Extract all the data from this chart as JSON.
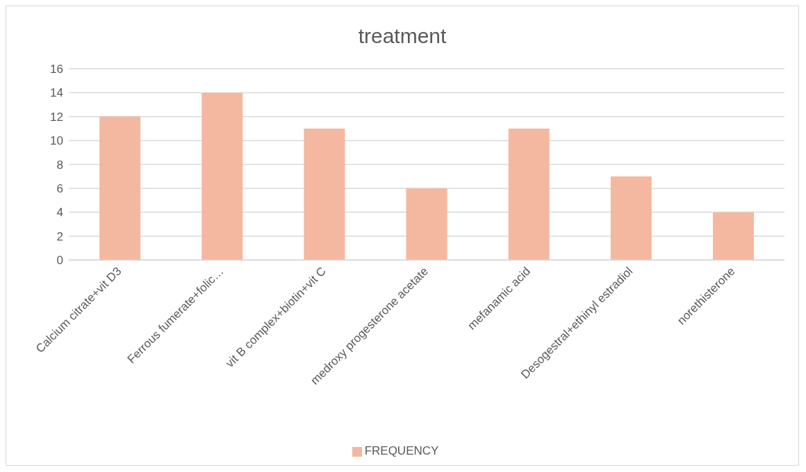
{
  "chart_data": {
    "type": "bar",
    "title": "treatment",
    "categories": [
      "Calcium citrate+vit D3",
      "Ferrous fumerate+folic…",
      "vit B complex+biotin+vit C",
      "medroxy progesterone acetate",
      "mefanamic acid",
      "Desogestral+ethinyl estradiol",
      "norethisterone"
    ],
    "series": [
      {
        "name": "FREQUENCY",
        "color": "#f4b8a0",
        "values": [
          12,
          14,
          11,
          6,
          11,
          7,
          4
        ]
      }
    ],
    "ylim": [
      0,
      16
    ],
    "yticks": [
      0,
      2,
      4,
      6,
      8,
      10,
      12,
      14,
      16
    ],
    "grid": "y",
    "legend": "bottom"
  }
}
